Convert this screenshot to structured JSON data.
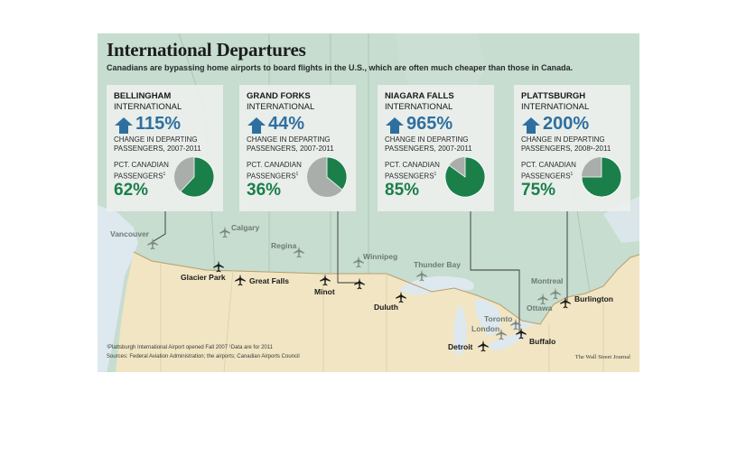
{
  "title": "International Departures",
  "subtitle": "Canadians are bypassing home airports to board flights in the U.S., which are often much cheaper than those in Canada.",
  "colors": {
    "canada_land": "#c6ddd0",
    "us_land": "#f1e5c4",
    "water": "#dee8ef",
    "increase_arrow": "#2f6f9f",
    "canadian_share": "#1b7f4a",
    "other_share": "#a9aeab"
  },
  "airports": [
    {
      "name_line1": "BELLINGHAM",
      "name_line2": "INTERNATIONAL",
      "change": "115%",
      "change_label": "CHANGE IN DEPARTING PASSENGERS, 2007-2011",
      "pct_label": "PCT. CANADIAN PASSENGERS",
      "pct_label_note": "1",
      "pct_canadian": "62%",
      "pct_canadian_value": 62,
      "icon": "up-arrow-icon"
    },
    {
      "name_line1": "GRAND FORKS",
      "name_line2": "INTERNATIONAL",
      "change": "44%",
      "change_label": "CHANGE IN DEPARTING PASSENGERS, 2007-2011",
      "pct_label": "PCT. CANADIAN PASSENGERS",
      "pct_label_note": "1",
      "pct_canadian": "36%",
      "pct_canadian_value": 36,
      "icon": "up-arrow-icon"
    },
    {
      "name_line1": "NIAGARA FALLS",
      "name_line2": "INTERNATIONAL",
      "change": "965%",
      "change_label": "CHANGE IN DEPARTING PASSENGERS, 2007-2011",
      "pct_label": "PCT. CANADIAN PASSENGERS",
      "pct_label_note": "1",
      "pct_canadian": "85%",
      "pct_canadian_value": 85,
      "icon": "up-arrow-icon"
    },
    {
      "name_line1": "PLATTSBURGH",
      "name_line2": "INTERNATIONAL",
      "change": "200%",
      "change_label": "CHANGE IN DEPARTING PASSENGERS, 2008¹-2011",
      "pct_label": "PCT. CANADIAN PASSENGERS",
      "pct_label_note": "1",
      "pct_canadian": "75%",
      "pct_canadian_value": 75,
      "icon": "up-arrow-icon"
    }
  ],
  "cities_canada": [
    "Vancouver",
    "Calgary",
    "Regina",
    "Winnipeg",
    "Thunder Bay",
    "Montreal",
    "Ottawa",
    "Toronto",
    "London"
  ],
  "cities_us": [
    "Glacier Park",
    "Great Falls",
    "Minot",
    "Duluth",
    "Detroit",
    "Buffalo",
    "Burlington"
  ],
  "footnote1": "¹Plattsburgh International Airport opened Fall 2007   ¹Data are for 2011",
  "footnote2": "Sources: Federal Aviation Administration; the airports; Canadian Airports Council",
  "credit": "The Wall Street Journal"
}
